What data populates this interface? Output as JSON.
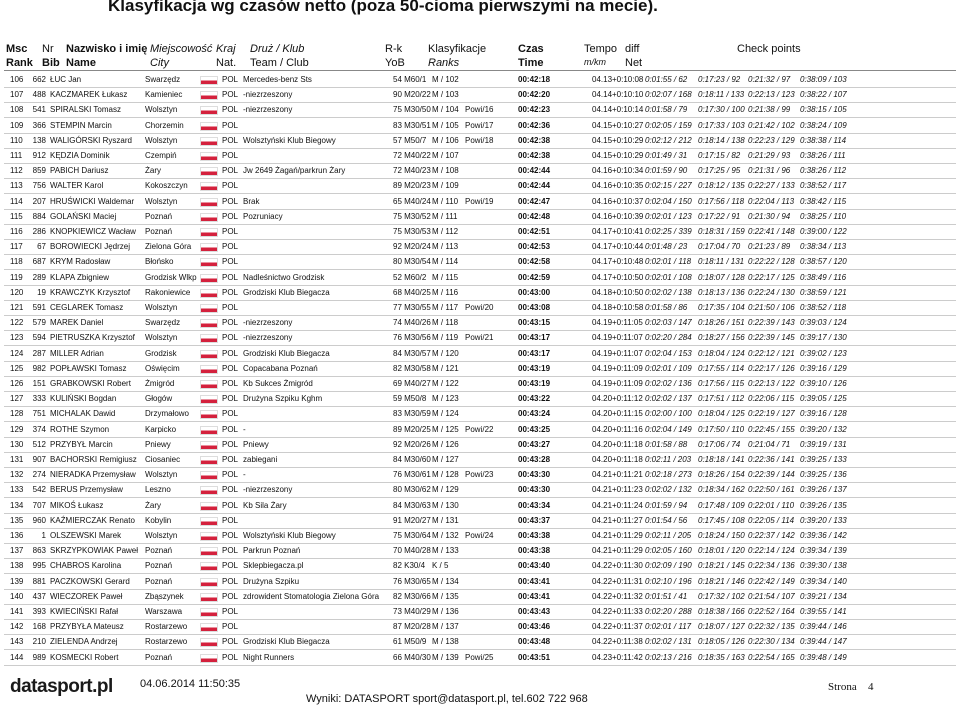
{
  "header": {
    "title": "Klasyfikacja wg czasów netto (poza 50-cioma pierwszymi na mecie).",
    "columns": [
      [
        "Msc",
        "Rank"
      ],
      [
        "Nr",
        "Bib"
      ],
      [
        "Nazwisko i imię",
        "Name"
      ],
      [
        "Miejscowość",
        "City"
      ],
      [
        "Kraj",
        "Nat."
      ],
      [
        "Druż / Klub",
        "Team / Club"
      ],
      [
        "R-k",
        "YoB"
      ],
      [
        "Klasyfikacje",
        "Ranks"
      ],
      [
        "Czas",
        "Time"
      ],
      [
        "Tempo",
        "m/km"
      ],
      [
        "diff",
        "Net"
      ]
    ],
    "checkpoints": "Check points"
  },
  "table": {
    "rows": [
      [
        "106",
        "662",
        "ŁUC Jan",
        "Swarzędz",
        "POL",
        "Mercedes-benz Sts",
        "54 M60/1",
        "M / 102",
        null,
        "00:42:18",
        "04.13",
        "+0:10:08",
        "0:01:55 / 62",
        "0:17:23 / 92",
        "0:21:32 / 97",
        "0:38:09 / 103"
      ],
      [
        "107",
        "488",
        "KACZMAREK Łukasz",
        "Kamieniec",
        "POL",
        "-niezrzeszony",
        "90 M20/22",
        "M / 103",
        null,
        "00:42:20",
        "04.14",
        "+0:10:10",
        "0:02:07 / 168",
        "0:18:11 / 133",
        "0:22:13 / 123",
        "0:38:22 / 107"
      ],
      [
        "108",
        "541",
        "SPIRALSKI Tomasz",
        "Wolsztyn",
        "POL",
        "-niezrzeszony",
        "75 M30/50",
        "M / 104",
        "Powi/16",
        "00:42:23",
        "04.14",
        "+0:10:14",
        "0:01:58 / 79",
        "0:17:30 / 100",
        "0:21:38 / 99",
        "0:38:15 / 105"
      ],
      [
        "109",
        "366",
        "STEMPIN Marcin",
        "Chorzemin",
        "POL",
        null,
        "83 M30/51",
        "M / 105",
        "Powi/17",
        "00:42:36",
        "04.15",
        "+0:10:27",
        "0:02:05 / 159",
        "0:17:33 / 103",
        "0:21:42 / 102",
        "0:38:24 / 109"
      ],
      [
        "110",
        "138",
        "WALIGÓRSKI Ryszard",
        "Wolsztyn",
        "POL",
        "Wolsztyński Klub Biegowy",
        "57 M50/7",
        "M / 106",
        "Powi/18",
        "00:42:38",
        "04.15",
        "+0:10:29",
        "0:02:12 / 212",
        "0:18:14 / 138",
        "0:22:23 / 129",
        "0:38:38 / 114"
      ],
      [
        "111",
        "912",
        "KĘDZIA Dominik",
        "Czempiń",
        "POL",
        null,
        "72 M40/22",
        "M / 107",
        null,
        "00:42:38",
        "04.15",
        "+0:10:29",
        "0:01:49 / 31",
        "0:17:15 / 82",
        "0:21:29 / 93",
        "0:38:26 / 111"
      ],
      [
        "112",
        "859",
        "PABICH Dariusz",
        "Żary",
        "POL",
        "Jw 2649 Żagań/parkrun Żary",
        "72 M40/23",
        "M / 108",
        null,
        "00:42:44",
        "04.16",
        "+0:10:34",
        "0:01:59 / 90",
        "0:17:25 / 95",
        "0:21:31 / 96",
        "0:38:26 / 112"
      ],
      [
        "113",
        "756",
        "WALTER Karol",
        "Kokoszczyn",
        "POL",
        null,
        "89 M20/23",
        "M / 109",
        null,
        "00:42:44",
        "04.16",
        "+0:10:35",
        "0:02:15 / 227",
        "0:18:12 / 135",
        "0:22:27 / 133",
        "0:38:52 / 117"
      ],
      [
        "114",
        "207",
        "HRUŚWICKI Waldemar",
        "Wolsztyn",
        "POL",
        "Brak",
        "65 M40/24",
        "M / 110",
        "Powi/19",
        "00:42:47",
        "04.16",
        "+0:10:37",
        "0:02:04 / 150",
        "0:17:56 / 118",
        "0:22:04 / 113",
        "0:38:42 / 115"
      ],
      [
        "115",
        "884",
        "GOLAŃSKI Maciej",
        "Poznań",
        "POL",
        "Pozruniacy",
        "75 M30/52",
        "M / 111",
        null,
        "00:42:48",
        "04.16",
        "+0:10:39",
        "0:02:01 / 123",
        "0:17:22 / 91",
        "0:21:30 / 94",
        "0:38:25 / 110"
      ],
      [
        "116",
        "286",
        "KNOPKIEWICZ Wacław",
        "Poznań",
        "POL",
        null,
        "75 M30/53",
        "M / 112",
        null,
        "00:42:51",
        "04.17",
        "+0:10:41",
        "0:02:25 / 339",
        "0:18:31 / 159",
        "0:22:41 / 148",
        "0:39:00 / 122"
      ],
      [
        "117",
        "67",
        "BOROWIECKI Jędrzej",
        "Zielona Góra",
        "POL",
        null,
        "92 M20/24",
        "M / 113",
        null,
        "00:42:53",
        "04.17",
        "+0:10:44",
        "0:01:48 / 23",
        "0:17:04 / 70",
        "0:21:23 / 89",
        "0:38:34 / 113"
      ],
      [
        "118",
        "687",
        "KRYM Radosław",
        "Błońsko",
        "POL",
        null,
        "80 M30/54",
        "M / 114",
        null,
        "00:42:58",
        "04.17",
        "+0:10:48",
        "0:02:01 / 118",
        "0:18:11 / 131",
        "0:22:22 / 128",
        "0:38:57 / 120"
      ],
      [
        "119",
        "289",
        "KLAPA Zbigniew",
        "Grodzisk Wlkp",
        "POL",
        "Nadleśnictwo Grodzisk",
        "52 M60/2",
        "M / 115",
        null,
        "00:42:59",
        "04.17",
        "+0:10:50",
        "0:02:01 / 108",
        "0:18:07 / 128",
        "0:22:17 / 125",
        "0:38:49 / 116"
      ],
      [
        "120",
        "19",
        "KRAWCZYK Krzysztof",
        "Rakoniewice",
        "POL",
        "Grodziski Klub Biegacza",
        "68 M40/25",
        "M / 116",
        null,
        "00:43:00",
        "04.18",
        "+0:10:50",
        "0:02:02 / 138",
        "0:18:13 / 136",
        "0:22:24 / 130",
        "0:38:59 / 121"
      ],
      [
        "121",
        "591",
        "CEGLAREK Tomasz",
        "Wolsztyn",
        "POL",
        null,
        "77 M30/55",
        "M / 117",
        "Powi/20",
        "00:43:08",
        "04.18",
        "+0:10:58",
        "0:01:58 / 86",
        "0:17:35 / 104",
        "0:21:50 / 106",
        "0:38:52 / 118"
      ],
      [
        "122",
        "579",
        "MAREK Daniel",
        "Swarzędz",
        "POL",
        "-niezrzeszony",
        "74 M40/26",
        "M / 118",
        null,
        "00:43:15",
        "04.19",
        "+0:11:05",
        "0:02:03 / 147",
        "0:18:26 / 151",
        "0:22:39 / 143",
        "0:39:03 / 124"
      ],
      [
        "123",
        "594",
        "PIETRUSZKA Krzysztof",
        "Wolsztyn",
        "POL",
        "-niezrzeszony",
        "76 M30/56",
        "M / 119",
        "Powi/21",
        "00:43:17",
        "04.19",
        "+0:11:07",
        "0:02:20 / 284",
        "0:18:27 / 156",
        "0:22:39 / 145",
        "0:39:17 / 130"
      ],
      [
        "124",
        "287",
        "MILLER Adrian",
        "Grodzisk",
        "POL",
        "Grodziski Klub Biegacza",
        "84 M30/57",
        "M / 120",
        null,
        "00:43:17",
        "04.19",
        "+0:11:07",
        "0:02:04 / 153",
        "0:18:04 / 124",
        "0:22:12 / 121",
        "0:39:02 / 123"
      ],
      [
        "125",
        "982",
        "POPŁAWSKI Tomasz",
        "Oświęcim",
        "POL",
        "Copacabana Poznań",
        "82 M30/58",
        "M / 121",
        null,
        "00:43:19",
        "04.19",
        "+0:11:09",
        "0:02:01 / 109",
        "0:17:55 / 114",
        "0:22:17 / 126",
        "0:39:16 / 129"
      ],
      [
        "126",
        "151",
        "GRABKOWSKI Robert",
        "Żmigród",
        "POL",
        "Kb Sukces Żmigród",
        "69 M40/27",
        "M / 122",
        null,
        "00:43:19",
        "04.19",
        "+0:11:09",
        "0:02:02 / 136",
        "0:17:56 / 115",
        "0:22:13 / 122",
        "0:39:10 / 126"
      ],
      [
        "127",
        "333",
        "KULIŃSKI Bogdan",
        "Głogów",
        "POL",
        "Drużyna Szpiku Kghm",
        "59 M50/8",
        "M / 123",
        null,
        "00:43:22",
        "04.20",
        "+0:11:12",
        "0:02:02 / 137",
        "0:17:51 / 112",
        "0:22:06 / 115",
        "0:39:05 / 125"
      ],
      [
        "128",
        "751",
        "MICHALAK Dawid",
        "Drzymałowo",
        "POL",
        null,
        "83 M30/59",
        "M / 124",
        null,
        "00:43:24",
        "04.20",
        "+0:11:15",
        "0:02:00 / 100",
        "0:18:04 / 125",
        "0:22:19 / 127",
        "0:39:16 / 128"
      ],
      [
        "129",
        "374",
        "ROTHE Szymon",
        "Karpicko",
        "POL",
        "-",
        "89 M20/25",
        "M / 125",
        "Powi/22",
        "00:43:25",
        "04.20",
        "+0:11:16",
        "0:02:04 / 149",
        "0:17:50 / 110",
        "0:22:45 / 155",
        "0:39:20 / 132"
      ],
      [
        "130",
        "512",
        "PRZYBYŁ Marcin",
        "Pniewy",
        "POL",
        "Pniewy",
        "92 M20/26",
        "M / 126",
        null,
        "00:43:27",
        "04.20",
        "+0:11:18",
        "0:01:58 / 88",
        "0:17:06 / 74",
        "0:21:04 / 71",
        "0:39:19 / 131"
      ],
      [
        "131",
        "907",
        "BACHORSKI Remigiusz",
        "Ciosaniec",
        "POL",
        "zabiegani",
        "84 M30/60",
        "M / 127",
        null,
        "00:43:28",
        "04.20",
        "+0:11:18",
        "0:02:11 / 203",
        "0:18:18 / 141",
        "0:22:36 / 141",
        "0:39:25 / 133"
      ],
      [
        "132",
        "274",
        "NIERADKA Przemysław",
        "Wolsztyn",
        "POL",
        "-",
        "76 M30/61",
        "M / 128",
        "Powi/23",
        "00:43:30",
        "04.21",
        "+0:11:21",
        "0:02:18 / 273",
        "0:18:26 / 154",
        "0:22:39 / 144",
        "0:39:25 / 136"
      ],
      [
        "133",
        "542",
        "BERUS Przemysław",
        "Leszno",
        "POL",
        "-niezrzeszony",
        "80 M30/62",
        "M / 129",
        null,
        "00:43:30",
        "04.21",
        "+0:11:23",
        "0:02:02 / 132",
        "0:18:34 / 162",
        "0:22:50 / 161",
        "0:39:26 / 137"
      ],
      [
        "134",
        "707",
        "MIKOŚ Łukasz",
        "Żary",
        "POL",
        "Kb Sila Żary",
        "84 M30/63",
        "M / 130",
        null,
        "00:43:34",
        "04.21",
        "+0:11:24",
        "0:01:59 / 94",
        "0:17:48 / 109",
        "0:22:01 / 110",
        "0:39:26 / 135"
      ],
      [
        "135",
        "960",
        "KAŹMIERCZAK Renato",
        "Kobylin",
        "POL",
        null,
        "91 M20/27",
        "M / 131",
        null,
        "00:43:37",
        "04.21",
        "+0:11:27",
        "0:01:54 / 56",
        "0:17:45 / 108",
        "0:22:05 / 114",
        "0:39:20 / 133"
      ],
      [
        "136",
        "1",
        "OLSZEWSKI Marek",
        "Wolsztyn",
        "POL",
        "Wolsztyński Klub Biegowy",
        "75 M30/64",
        "M / 132",
        "Powi/24",
        "00:43:38",
        "04.21",
        "+0:11:29",
        "0:02:11 / 205",
        "0:18:24 / 150",
        "0:22:37 / 142",
        "0:39:36 / 142"
      ],
      [
        "137",
        "863",
        "SKRZYPKOWIAK Paweł",
        "Poznań",
        "POL",
        "Parkrun Poznań",
        "70 M40/28",
        "M / 133",
        null,
        "00:43:38",
        "04.21",
        "+0:11:29",
        "0:02:05 / 160",
        "0:18:01 / 120",
        "0:22:14 / 124",
        "0:39:34 / 139"
      ],
      [
        "138",
        "995",
        "CHABROS Karolina",
        "Poznań",
        "POL",
        "Sklepbiegacza.pl",
        "82 K30/4",
        "K / 5",
        null,
        "00:43:40",
        "04.22",
        "+0:11:30",
        "0:02:09 / 190",
        "0:18:21 / 145",
        "0:22:34 / 136",
        "0:39:30 / 138"
      ],
      [
        "139",
        "881",
        "PACZKOWSKI Gerard",
        "Poznań",
        "POL",
        "Drużyna Szpiku",
        "76 M30/65",
        "M / 134",
        null,
        "00:43:41",
        "04.22",
        "+0:11:31",
        "0:02:10 / 196",
        "0:18:21 / 146",
        "0:22:42 / 149",
        "0:39:34 / 140"
      ],
      [
        "140",
        "437",
        "WIECZOREK Paweł",
        "Zbąszynek",
        "POL",
        "zdrowident Stomatologia Zielona Góra",
        "82 M30/66",
        "M / 135",
        null,
        "00:43:41",
        "04.22",
        "+0:11:32",
        "0:01:51 / 41",
        "0:17:32 / 102",
        "0:21:54 / 107",
        "0:39:21 / 134"
      ],
      [
        "141",
        "393",
        "KWIECIŃSKI Rafał",
        "Warszawa",
        "POL",
        null,
        "73 M40/29",
        "M / 136",
        null,
        "00:43:43",
        "04.22",
        "+0:11:33",
        "0:02:20 / 288",
        "0:18:38 / 166",
        "0:22:52 / 164",
        "0:39:55 / 141"
      ],
      [
        "142",
        "168",
        "PRZYBYŁA Mateusz",
        "Rostarzewo",
        "POL",
        null,
        "87 M20/28",
        "M / 137",
        null,
        "00:43:46",
        "04.22",
        "+0:11:37",
        "0:02:01 / 117",
        "0:18:07 / 127",
        "0:22:32 / 135",
        "0:39:44 / 146"
      ],
      [
        "143",
        "210",
        "ZIELENDA Andrzej",
        "Rostarzewo",
        "POL",
        "Grodziski Klub Biegacza",
        "61 M50/9",
        "M / 138",
        null,
        "00:43:48",
        "04.22",
        "+0:11:38",
        "0:02:02 / 131",
        "0:18:05 / 126",
        "0:22:30 / 134",
        "0:39:44 / 147"
      ],
      [
        "144",
        "989",
        "KOSMECKI Robert",
        "Poznań",
        "POL",
        "Night Runners",
        "66 M40/30",
        "M / 139",
        "Powi/25",
        "00:43:51",
        "04.23",
        "+0:11:42",
        "0:02:13 / 216",
        "0:18:35 / 163",
        "0:22:54 / 165",
        "0:39:48 / 149"
      ]
    ]
  },
  "footer": {
    "logo": "datasport.pl",
    "date": "04.06.2014 11:50:35",
    "contact": "Wyniki: DATASPORT sport@datasport.pl, tel.602 722 968",
    "page_label": "Strona",
    "page": "4"
  }
}
